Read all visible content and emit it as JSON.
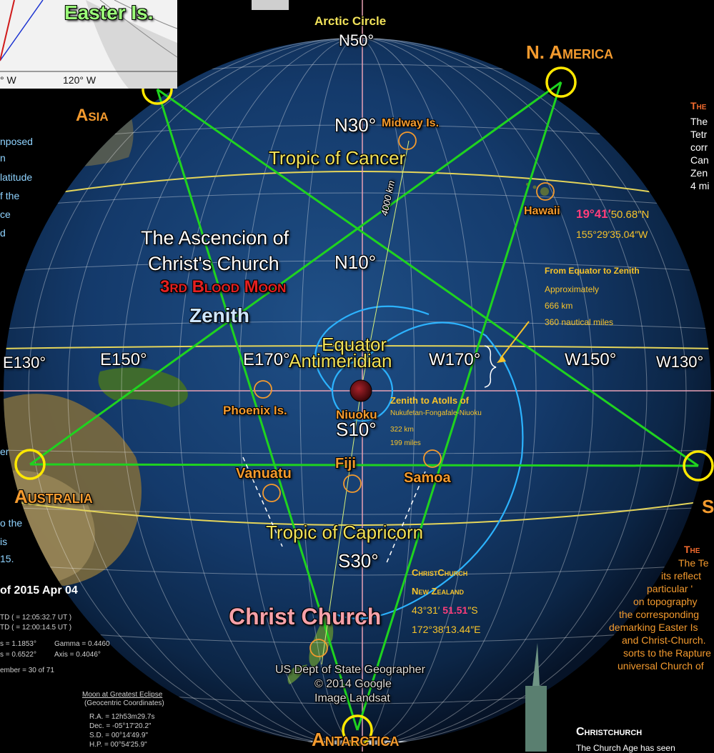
{
  "map": {
    "easter_island_inset": "Easter Is.",
    "inset_ticks": [
      "° W",
      "120° W"
    ],
    "arctic_circle": "Arctic Circle",
    "lat_labels": [
      "N50°",
      "N30°",
      "N10°",
      "S10°",
      "S30°"
    ],
    "lon_labels": [
      "E130°",
      "E150°",
      "E170°",
      "W170°",
      "W150°",
      "W130°"
    ],
    "tropic_cancer": "Tropic of Cancer",
    "tropic_capricorn": "Tropic of Capricorn",
    "equator": "Equator",
    "antimeridian": "Antimeridian",
    "distance_label": "4000 km",
    "places": {
      "midway": "Midway Is.",
      "hawaii": "Hawaii",
      "phoenix": "Phoenix Is.",
      "niuoku": "Niuoku",
      "vanuatu": "Vanuatu",
      "fiji": "Fiji",
      "samoa": "Samoa",
      "christ_church": "Christ Church"
    },
    "continents": {
      "asia": "Asia",
      "north_america": "N. America",
      "australia": "Australia",
      "antarctica": "Antarctica",
      "south_partial": "S"
    },
    "hawaii_coords": {
      "lat_highlight": "19°41′",
      "lat_rest": "50.68″N",
      "lon": "155°29′35.04″W"
    },
    "title_lines": [
      "The Ascencion of",
      "Christ's Church"
    ],
    "blood_moon": "3rd Blood Moon",
    "zenith": "Zenith",
    "equator_box": {
      "title": "From Equator to Zenith",
      "lines": [
        "Approximately",
        "666 km",
        "360 nautical miles"
      ]
    },
    "atolls_box": {
      "title": "Zenith to Atolls of",
      "line": "Nukufetan-Fongafale-Niuoku",
      "km": "322 km",
      "miles": "199 miles"
    },
    "christchurch_box": {
      "title1": "ChristChurch",
      "title2": "New Zealand",
      "lat_a": "43°31′",
      "lat_b": "51.51",
      "lat_c": "″S",
      "lon": "172°38′13.44″E"
    },
    "credits": [
      "US Dept of State Geographer",
      "© 2014 Google",
      "Image Landsat"
    ]
  },
  "left_panel": {
    "fragments": [
      "nposed",
      "n",
      "latitude",
      "f the",
      "ce",
      "d"
    ],
    "fragments2": [
      "er"
    ],
    "fragments3": [
      "o the",
      "is",
      "15."
    ],
    "eclipse_title": "of 2015 Apr 04",
    "rows": [
      "TD  ( = 12:05:32.7 UT )",
      "TD  ( = 12:00:14.5 UT )"
    ],
    "params": [
      "s = 1.1853°",
      "Gamma =  0.4460",
      "s = 0.6522°",
      "Axis =  0.4046°"
    ],
    "member": "ember = 30 of 71",
    "moon_title": "Moon at Greatest Eclipse",
    "moon_sub": "(Geocentric Coordinates)",
    "moon_rows": [
      "R.A. =  12h53m29.7s",
      "Dec. = -05°17'20.2\"",
      "S.D. =  00°14'49.9\"",
      "H.P. =  00°54'25.9\""
    ]
  },
  "right_panel": {
    "heading": "The",
    "lines": [
      "The",
      "Tetr",
      "corr",
      "Can",
      "Zen",
      "4 mi"
    ],
    "heading2": "The",
    "body2": [
      "The Te",
      "its reflect",
      "particular '",
      "on topography",
      "the corresponding",
      "demarking Easter Is",
      "and Christ-Church.",
      "sorts to the Rapture",
      "universal Church of"
    ],
    "christchurch_heading": "Christchurch",
    "christchurch_body": "The Church Age has seen"
  }
}
